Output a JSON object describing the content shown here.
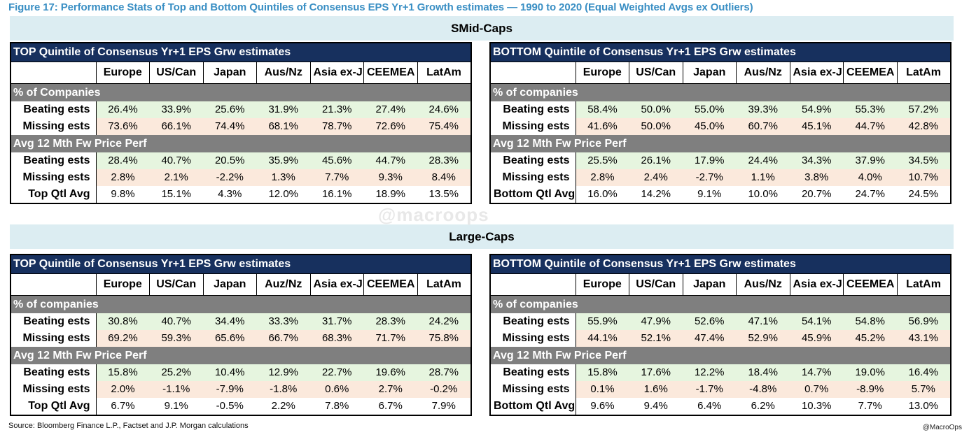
{
  "figure_title": "Figure 17: Performance Stats of Top and Bottom Quintiles of Consensus EPS Yr+1 Growth estimates — 1990 to 2020 (Equal Weighted Avgs ex Outliers)",
  "smid": {
    "band_title": "SMid-Caps",
    "top": {
      "header": "TOP Quintile of Consensus Yr+1 EPS Grw estimates",
      "columns": [
        "Europe",
        "US/Can",
        "Japan",
        "Aus/Nz",
        "Asia ex-J",
        "CEEMEA",
        "LatAm"
      ],
      "section1": "% of Companies",
      "beating_label": "Beating ests",
      "missing_label": "Missing ests",
      "pct_beating": [
        "26.4%",
        "33.9%",
        "25.6%",
        "31.9%",
        "21.3%",
        "27.4%",
        "24.6%"
      ],
      "pct_missing": [
        "73.6%",
        "66.1%",
        "74.4%",
        "68.1%",
        "78.7%",
        "72.6%",
        "75.4%"
      ],
      "section2": "Avg 12 Mth Fw Price Perf",
      "perf_beating": [
        "28.4%",
        "40.7%",
        "20.5%",
        "35.9%",
        "45.6%",
        "44.7%",
        "28.3%"
      ],
      "perf_missing": [
        "2.8%",
        "2.1%",
        "-2.2%",
        "1.3%",
        "7.7%",
        "9.3%",
        "8.4%"
      ],
      "avg_label": "Top Qtl Avg",
      "avg": [
        "9.8%",
        "15.1%",
        "4.3%",
        "12.0%",
        "16.1%",
        "18.9%",
        "13.5%"
      ]
    },
    "bottom": {
      "header": "BOTTOM Quintile of Consensus Yr+1 EPS Grw estimates",
      "columns": [
        "Europe",
        "US/Can",
        "Japan",
        "Aus/Nz",
        "Asia ex-J",
        "CEEMEA",
        "LatAm"
      ],
      "section1": "% of companies",
      "beating_label": "Beating ests",
      "missing_label": "Missing ests",
      "pct_beating": [
        "58.4%",
        "50.0%",
        "55.0%",
        "39.3%",
        "54.9%",
        "55.3%",
        "57.2%"
      ],
      "pct_missing": [
        "41.6%",
        "50.0%",
        "45.0%",
        "60.7%",
        "45.1%",
        "44.7%",
        "42.8%"
      ],
      "section2": "Avg 12 Mth Fw Price Perf",
      "perf_beating": [
        "25.5%",
        "26.1%",
        "17.9%",
        "24.4%",
        "34.3%",
        "37.9%",
        "34.5%"
      ],
      "perf_missing": [
        "2.8%",
        "2.4%",
        "-2.7%",
        "1.1%",
        "3.8%",
        "4.0%",
        "10.7%"
      ],
      "avg_label": "Bottom Qtl Avg",
      "avg": [
        "16.0%",
        "14.2%",
        "9.1%",
        "10.0%",
        "20.7%",
        "24.7%",
        "24.5%"
      ]
    }
  },
  "large": {
    "band_title": "Large-Caps",
    "top": {
      "header": "TOP Quintile of Consensus Yr+1 EPS Grw estimates",
      "columns": [
        "Europe",
        "US/Can",
        "Japan",
        "Auz/Nz",
        "Asia ex-J",
        "CEEMEA",
        "LatAm"
      ],
      "section1": "% of companies",
      "beating_label": "Beating ests",
      "missing_label": "Missing ests",
      "pct_beating": [
        "30.8%",
        "40.7%",
        "34.4%",
        "33.3%",
        "31.7%",
        "28.3%",
        "24.2%"
      ],
      "pct_missing": [
        "69.2%",
        "59.3%",
        "65.6%",
        "66.7%",
        "68.3%",
        "71.7%",
        "75.8%"
      ],
      "section2": "Avg 12 Mth Fw Price Perf",
      "perf_beating": [
        "15.8%",
        "25.2%",
        "10.4%",
        "12.9%",
        "22.7%",
        "19.6%",
        "28.7%"
      ],
      "perf_missing": [
        "2.0%",
        "-1.1%",
        "-7.9%",
        "-1.8%",
        "0.6%",
        "2.7%",
        "-0.2%"
      ],
      "avg_label": "Top Qtl Avg",
      "avg": [
        "6.7%",
        "9.1%",
        "-0.5%",
        "2.2%",
        "7.8%",
        "6.7%",
        "7.9%"
      ]
    },
    "bottom": {
      "header": "BOTTOM Quintile of Consensus Yr+1 EPS Grw estimates",
      "columns": [
        "Europe",
        "US/Can",
        "Japan",
        "Aus/Nz",
        "Asia ex-J",
        "CEEMEA",
        "LatAm"
      ],
      "section1": "% of companies",
      "beating_label": "Beating ests",
      "missing_label": "Missing ests",
      "pct_beating": [
        "55.9%",
        "47.9%",
        "52.6%",
        "47.1%",
        "54.1%",
        "54.8%",
        "56.9%"
      ],
      "pct_missing": [
        "44.1%",
        "52.1%",
        "47.4%",
        "52.9%",
        "45.9%",
        "45.2%",
        "43.1%"
      ],
      "section2": "Avg 12 Mth Fw Price Perf",
      "perf_beating": [
        "15.8%",
        "17.6%",
        "12.2%",
        "18.4%",
        "14.7%",
        "19.0%",
        "16.4%"
      ],
      "perf_missing": [
        "0.1%",
        "1.6%",
        "-1.7%",
        "-4.8%",
        "0.7%",
        "-8.9%",
        "5.7%"
      ],
      "avg_label": "Bottom Qtl Avg",
      "avg": [
        "9.6%",
        "9.4%",
        "6.4%",
        "6.2%",
        "10.3%",
        "7.7%",
        "13.0%"
      ]
    }
  },
  "watermark": "@macroops",
  "source": "Source: Bloomberg Finance L.P., Factset and J.P. Morgan calculations",
  "credit": "@MacroOps"
}
